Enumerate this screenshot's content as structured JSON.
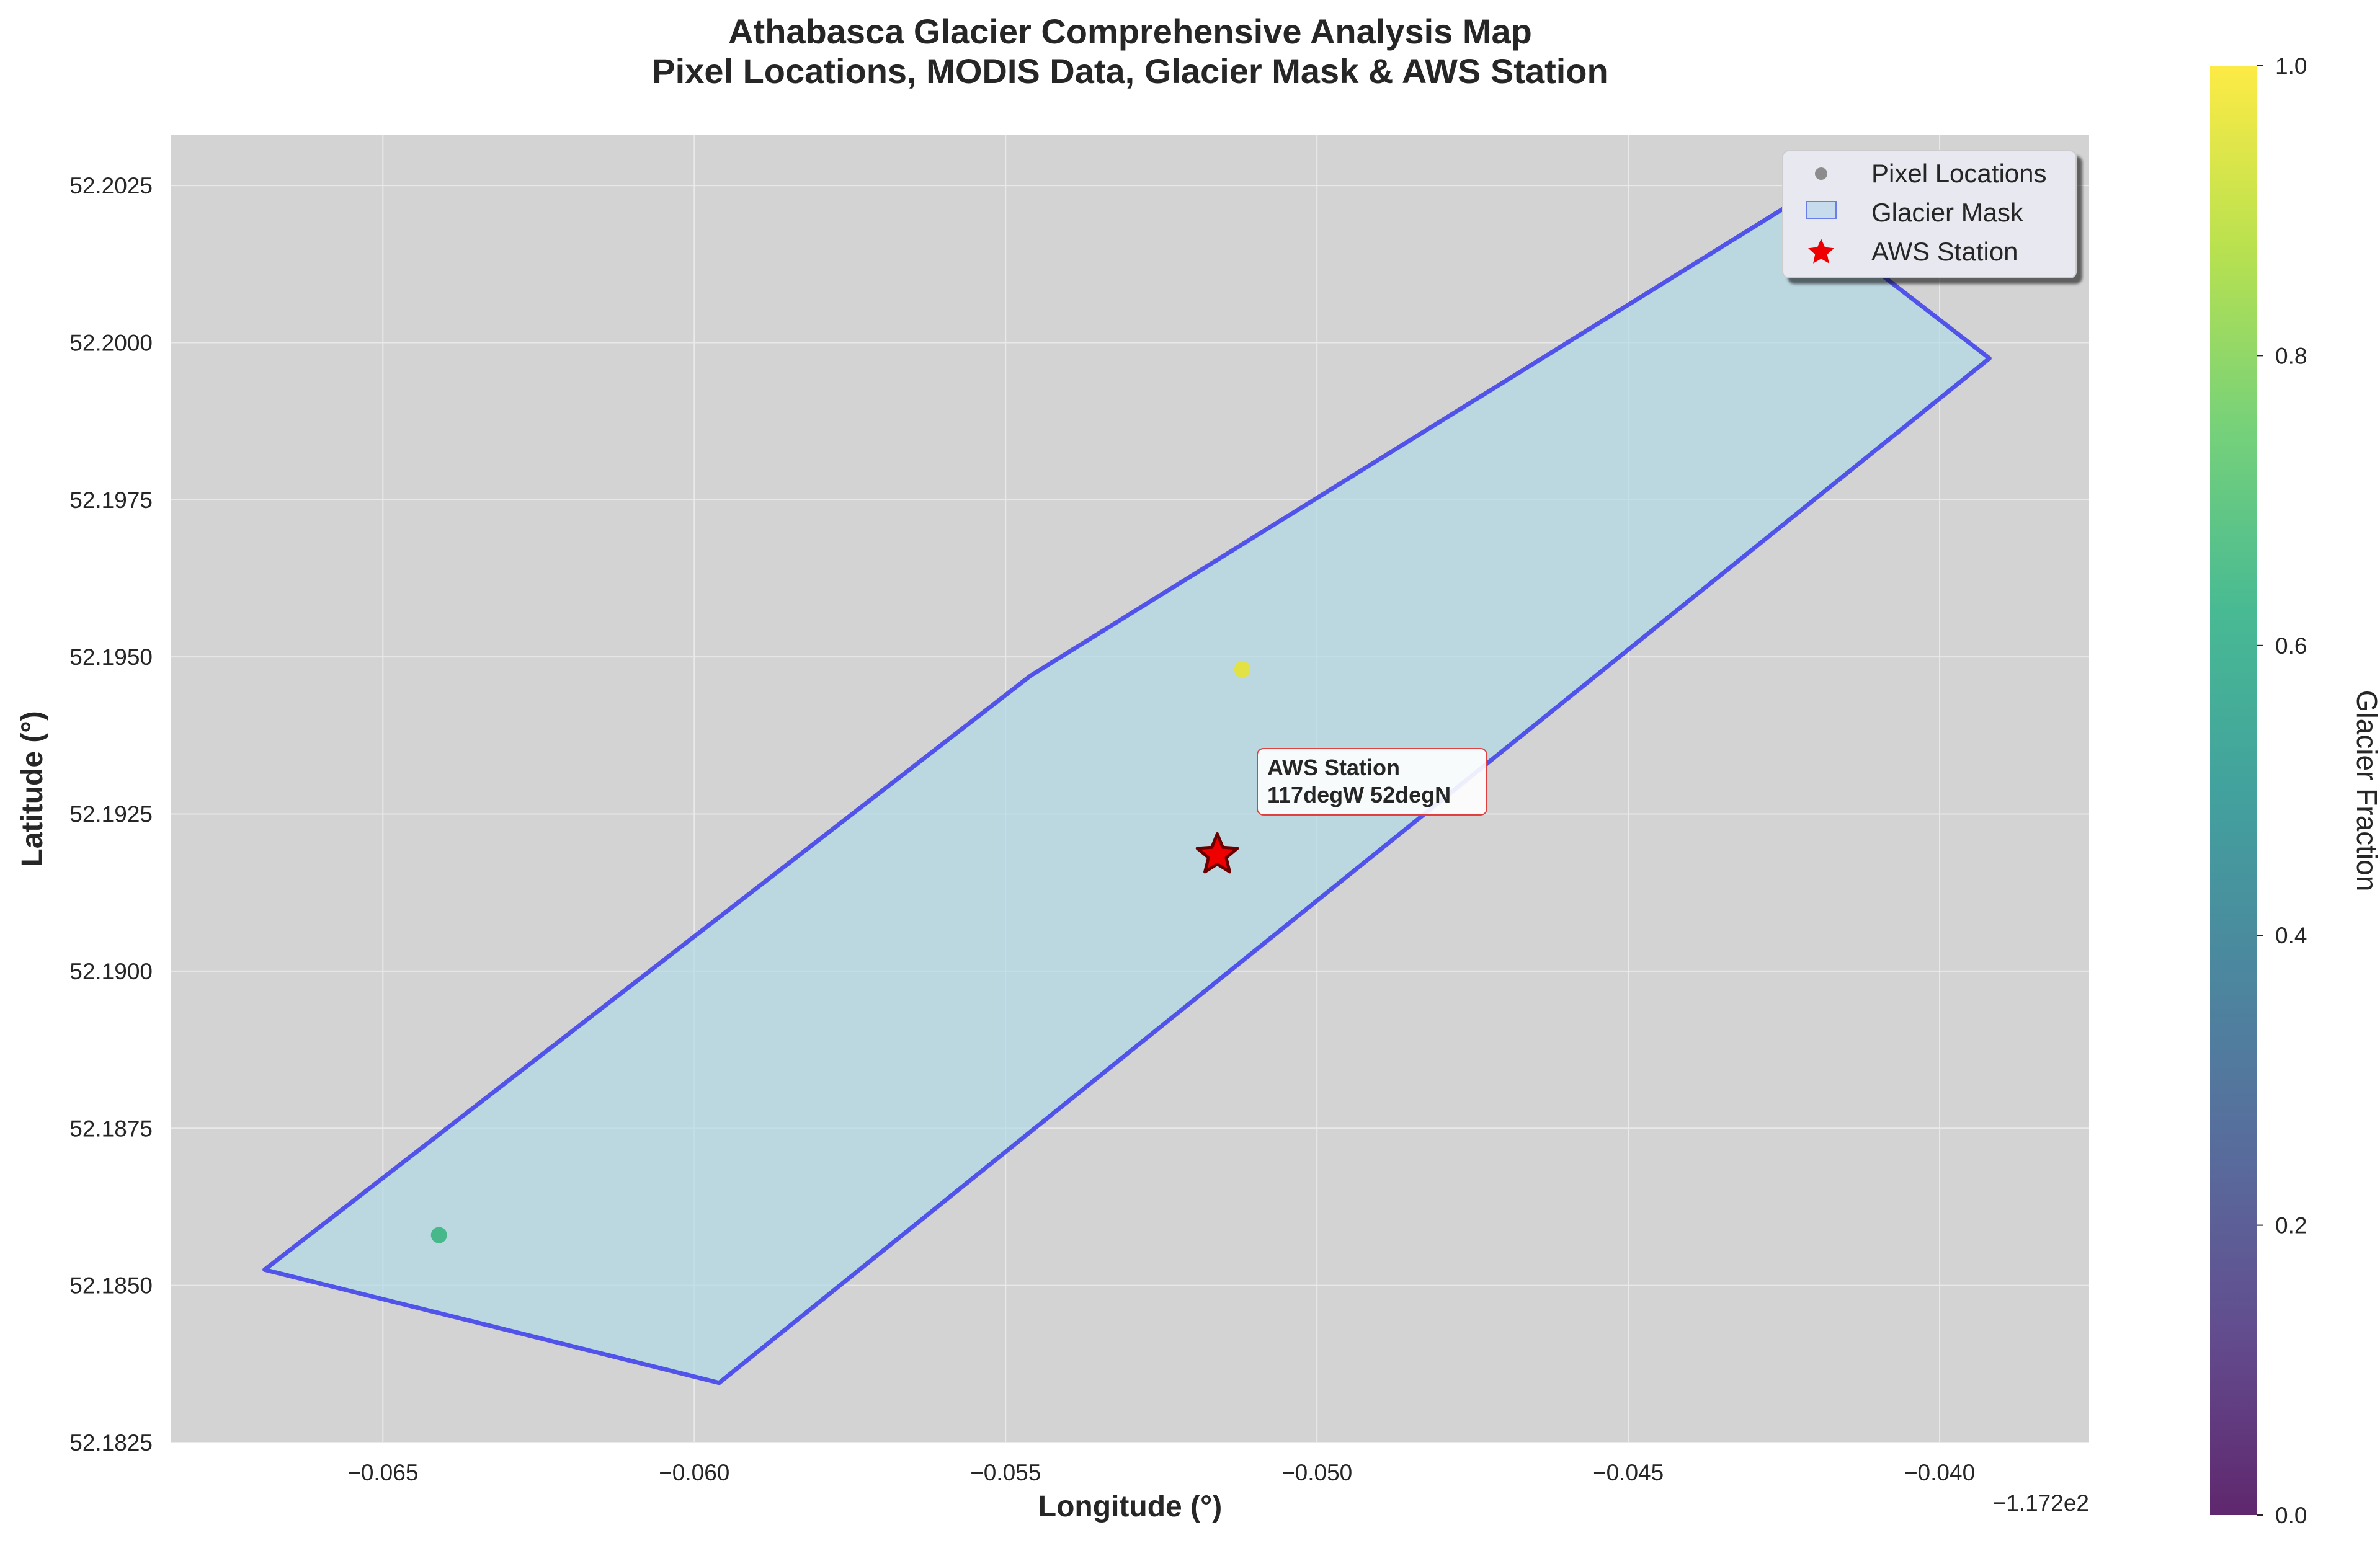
{
  "chart_data": {
    "type": "scatter",
    "title": [
      "Athabasca Glacier Comprehensive Analysis Map",
      "Pixel Locations, MODIS Data, Glacier Mask & AWS Station"
    ],
    "xlabel": "Longitude (°)",
    "ylabel": "Latitude (°)",
    "x_offset_label": "−1.172e2",
    "xlim": [
      -0.0684,
      -0.0376
    ],
    "ylim": [
      52.1825,
      52.2033
    ],
    "x_ticks": [
      -0.065,
      -0.06,
      -0.055,
      -0.05,
      -0.045,
      -0.04
    ],
    "x_tick_labels": [
      "−0.065",
      "−0.060",
      "−0.055",
      "−0.050",
      "−0.045",
      "−0.040"
    ],
    "y_ticks": [
      52.1825,
      52.185,
      52.1875,
      52.19,
      52.1925,
      52.195,
      52.1975,
      52.2,
      52.2025
    ],
    "y_tick_labels": [
      "52.1825",
      "52.1850",
      "52.1875",
      "52.1900",
      "52.1925",
      "52.1950",
      "52.1975",
      "52.2000",
      "52.2025"
    ],
    "grid": true,
    "plot_background": "#d3d3d3",
    "glacier_mask": {
      "name": "Glacier Mask",
      "fill": "#add8e6",
      "edge": "#3333ee",
      "polygon": [
        [
          -0.0669,
          52.18525
        ],
        [
          -0.0546,
          52.1947
        ],
        [
          -0.0424,
          52.2022
        ],
        [
          -0.0392,
          52.19975
        ],
        [
          -0.0596,
          52.18345
        ]
      ]
    },
    "pixel_locations": {
      "name": "Pixel Locations",
      "points": [
        {
          "x": -0.0641,
          "y": 52.1858,
          "glacier_fraction": 0.65
        },
        {
          "x": -0.0512,
          "y": 52.1948,
          "glacier_fraction": 0.97
        }
      ]
    },
    "aws_station": {
      "name": "AWS Station",
      "x": -0.0516,
      "y": 52.19185,
      "annotation": [
        "AWS Station",
        "117degW 52degN"
      ],
      "color": "#ee0000"
    },
    "legend": {
      "placement": "top-right",
      "entries": [
        "Pixel Locations",
        "Glacier Mask",
        "AWS Station"
      ]
    },
    "colorbar": {
      "label": "Glacier Fraction",
      "colormap": "viridis",
      "range": [
        0,
        1
      ],
      "ticks": [
        0.0,
        0.2,
        0.4,
        0.6,
        0.8,
        1.0
      ],
      "tick_labels": [
        "0.0",
        "0.2",
        "0.4",
        "0.6",
        "0.8",
        "1.0"
      ]
    }
  }
}
